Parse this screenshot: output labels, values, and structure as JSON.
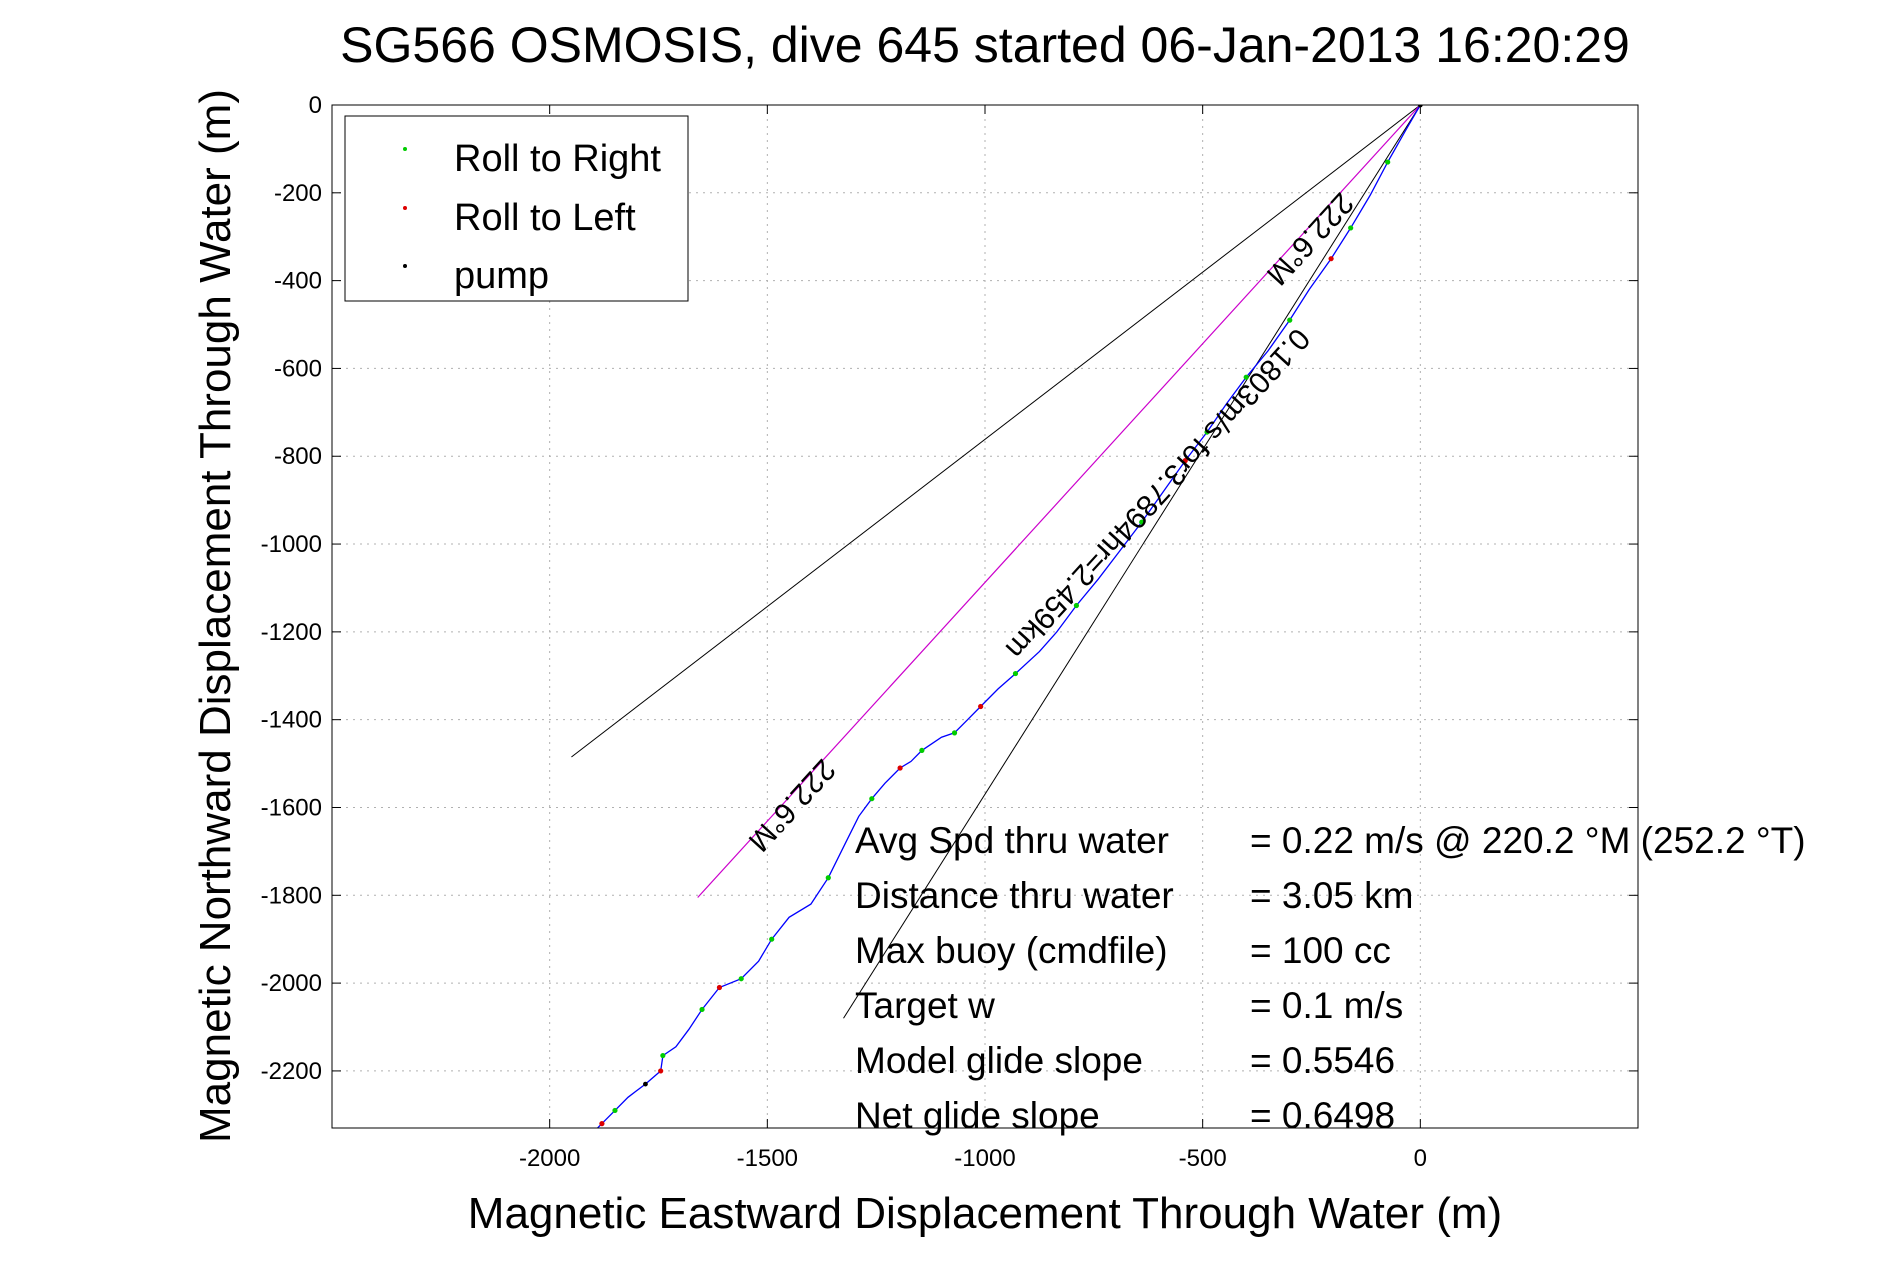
{
  "chart_data": {
    "type": "scatter",
    "title": "SG566 OSMOSIS, dive 645 started 06-Jan-2013 16:20:29",
    "xlabel": "Magnetic Eastward Displacement Through Water (m)",
    "ylabel": "Magnetic Northward Displacement Through Water (m)",
    "xlim": [
      -2500,
      500
    ],
    "ylim": [
      -2330,
      0
    ],
    "xticks": [
      -2000,
      -1500,
      -1000,
      -500,
      0
    ],
    "xtick_labels": [
      "-2000",
      "-1500",
      "-1000",
      "-500",
      "0"
    ],
    "yticks": [
      0,
      -200,
      -400,
      -600,
      -800,
      -1000,
      -1200,
      -1400,
      -1600,
      -1800,
      -2000,
      -2200
    ],
    "ytick_labels": [
      "0",
      "-200",
      "-400",
      "-600",
      "-800",
      "-1000",
      "-1200",
      "-1400",
      "-1600",
      "-1800",
      "-2000",
      "-2200"
    ],
    "grid": true,
    "legend_placement": "top-left",
    "legend": [
      {
        "label": "Roll to Right",
        "color": "#00cc00"
      },
      {
        "label": "Roll to Left",
        "color": "#dd0000"
      },
      {
        "label": "pump",
        "color": "#000000"
      }
    ],
    "track": {
      "color": "#0000ff",
      "points": [
        [
          0,
          0
        ],
        [
          -35,
          -60
        ],
        [
          -75,
          -130
        ],
        [
          -115,
          -205
        ],
        [
          -160,
          -280
        ],
        [
          -205,
          -350
        ],
        [
          -255,
          -420
        ],
        [
          -300,
          -490
        ],
        [
          -350,
          -560
        ],
        [
          -400,
          -620
        ],
        [
          -445,
          -680
        ],
        [
          -490,
          -745
        ],
        [
          -540,
          -810
        ],
        [
          -590,
          -880
        ],
        [
          -640,
          -950
        ],
        [
          -690,
          -1015
        ],
        [
          -740,
          -1080
        ],
        [
          -790,
          -1140
        ],
        [
          -835,
          -1200
        ],
        [
          -875,
          -1245
        ],
        [
          -930,
          -1295
        ],
        [
          -970,
          -1330
        ],
        [
          -1010,
          -1370
        ],
        [
          -1040,
          -1400
        ],
        [
          -1070,
          -1430
        ],
        [
          -1100,
          -1440
        ],
        [
          -1145,
          -1470
        ],
        [
          -1170,
          -1495
        ],
        [
          -1195,
          -1510
        ],
        [
          -1230,
          -1545
        ],
        [
          -1260,
          -1580
        ],
        [
          -1290,
          -1620
        ],
        [
          -1320,
          -1680
        ],
        [
          -1360,
          -1760
        ],
        [
          -1400,
          -1820
        ],
        [
          -1450,
          -1850
        ],
        [
          -1490,
          -1900
        ],
        [
          -1520,
          -1950
        ],
        [
          -1560,
          -1990
        ],
        [
          -1610,
          -2010
        ],
        [
          -1650,
          -2060
        ],
        [
          -1680,
          -2105
        ],
        [
          -1710,
          -2145
        ],
        [
          -1740,
          -2165
        ],
        [
          -1745,
          -2200
        ],
        [
          -1780,
          -2230
        ],
        [
          -1820,
          -2260
        ],
        [
          -1850,
          -2290
        ],
        [
          -1880,
          -2320
        ],
        [
          -1920,
          -2360
        ],
        [
          -1960,
          -2400
        ]
      ]
    },
    "roll_right_points": [
      [
        -75,
        -130
      ],
      [
        -160,
        -280
      ],
      [
        -300,
        -490
      ],
      [
        -400,
        -620
      ],
      [
        -490,
        -745
      ],
      [
        -640,
        -950
      ],
      [
        -790,
        -1140
      ],
      [
        -930,
        -1295
      ],
      [
        -1070,
        -1430
      ],
      [
        -1145,
        -1470
      ],
      [
        -1260,
        -1580
      ],
      [
        -1360,
        -1760
      ],
      [
        -1490,
        -1900
      ],
      [
        -1560,
        -1990
      ],
      [
        -1650,
        -2060
      ],
      [
        -1740,
        -2165
      ],
      [
        -1850,
        -2290
      ],
      [
        -1920,
        -2360
      ]
    ],
    "roll_left_points": [
      [
        -205,
        -350
      ],
      [
        -540,
        -810
      ],
      [
        -1010,
        -1370
      ],
      [
        -1195,
        -1510
      ],
      [
        -1610,
        -2010
      ],
      [
        -1745,
        -2200
      ],
      [
        -1880,
        -2320
      ]
    ],
    "pump_points": [
      [
        0,
        0
      ],
      [
        -1780,
        -2230
      ]
    ],
    "heading_line": {
      "color": "#cc00cc",
      "from": [
        0,
        0
      ],
      "to": [
        -1660,
        -1805
      ]
    },
    "cone_lines": [
      {
        "from": [
          0,
          0
        ],
        "to": [
          -1950,
          -1485
        ]
      },
      {
        "from": [
          0,
          0
        ],
        "to": [
          -1325,
          -2080
        ]
      }
    ],
    "annotations": [
      {
        "text": "222.6°M",
        "at": [
          -1460,
          -1580
        ]
      },
      {
        "text": "0.1803m/s for3.7894hr=2.459km",
        "at": [
          -620,
          -870
        ]
      },
      {
        "text": "222.6°M",
        "at": [
          -270,
          -290
        ]
      }
    ],
    "stats": [
      {
        "label": "Avg Spd thru water",
        "value": "=  0.22 m/s @ 220.2 °M (252.2 °T)"
      },
      {
        "label": "Distance thru water",
        "value": "=  3.05 km"
      },
      {
        "label": "Max buoy (cmdfile)",
        "value": "= 100 cc"
      },
      {
        "label": "Target w",
        "value": "= 0.1 m/s"
      },
      {
        "label": "Model glide slope",
        "value": "= 0.5546"
      },
      {
        "label": "Net glide slope",
        "value": "= 0.6498"
      }
    ]
  }
}
